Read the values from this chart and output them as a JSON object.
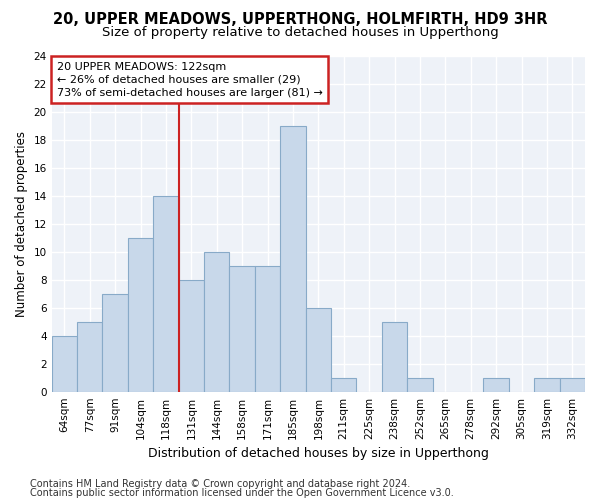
{
  "title_line1": "20, UPPER MEADOWS, UPPERTHONG, HOLMFIRTH, HD9 3HR",
  "title_line2": "Size of property relative to detached houses in Upperthong",
  "xlabel": "Distribution of detached houses by size in Upperthong",
  "ylabel": "Number of detached properties",
  "categories": [
    "64sqm",
    "77sqm",
    "91sqm",
    "104sqm",
    "118sqm",
    "131sqm",
    "144sqm",
    "158sqm",
    "171sqm",
    "185sqm",
    "198sqm",
    "211sqm",
    "225sqm",
    "238sqm",
    "252sqm",
    "265sqm",
    "278sqm",
    "292sqm",
    "305sqm",
    "319sqm",
    "332sqm"
  ],
  "values": [
    4,
    5,
    7,
    11,
    14,
    8,
    10,
    9,
    9,
    19,
    6,
    1,
    0,
    5,
    1,
    0,
    0,
    1,
    0,
    1,
    1
  ],
  "bar_color": "#c8d8ea",
  "bar_edge_color": "#88aac8",
  "ylim": [
    0,
    24
  ],
  "yticks": [
    0,
    2,
    4,
    6,
    8,
    10,
    12,
    14,
    16,
    18,
    20,
    22,
    24
  ],
  "vline_x_index": 4.5,
  "vline_color": "#cc2222",
  "annotation_line1": "20 UPPER MEADOWS: 122sqm",
  "annotation_line2": "← 26% of detached houses are smaller (29)",
  "annotation_line3": "73% of semi-detached houses are larger (81) →",
  "annotation_box_color": "#cc2222",
  "footer_line1": "Contains HM Land Registry data © Crown copyright and database right 2024.",
  "footer_line2": "Contains public sector information licensed under the Open Government Licence v3.0.",
  "background_color": "#eef2f8",
  "plot_bg_color": "#eef2f8",
  "grid_color": "#ffffff",
  "title_fontsize": 10.5,
  "subtitle_fontsize": 9.5,
  "xlabel_fontsize": 9,
  "ylabel_fontsize": 8.5,
  "tick_fontsize": 7.5,
  "annot_fontsize": 8,
  "footer_fontsize": 7
}
